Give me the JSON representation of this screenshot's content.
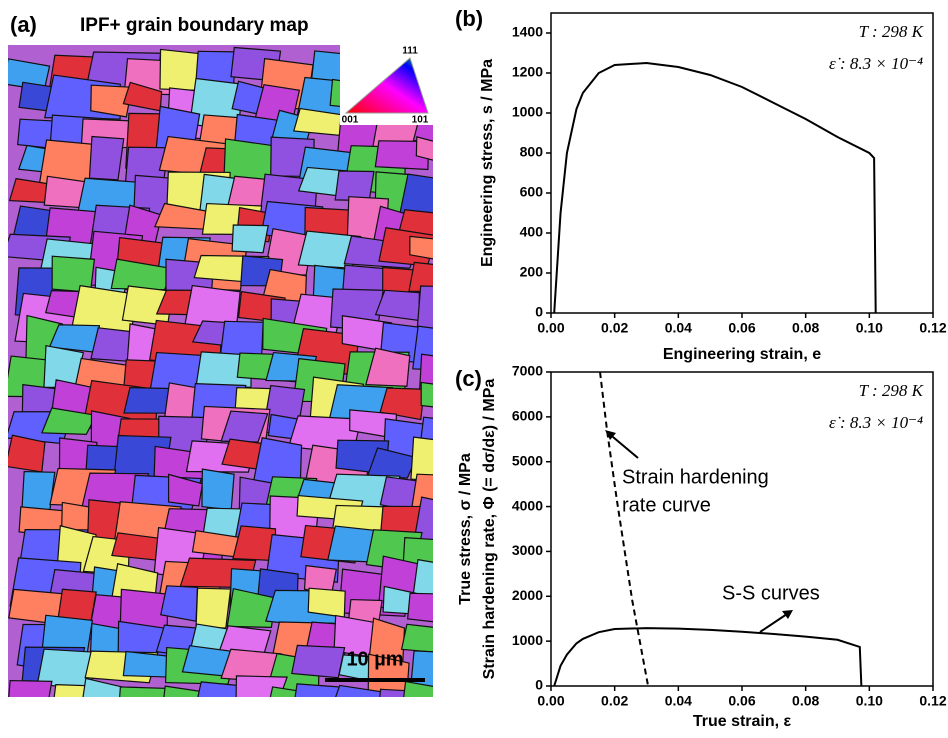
{
  "image_panel": {
    "label": "(a)",
    "title": "IPF+ grain boundary map",
    "legend_labels": [
      "111",
      "001",
      "101"
    ],
    "scale_bar": "10 µm"
  },
  "chart_data": [
    {
      "type": "line",
      "label": "(b)",
      "x_label": "Engineering strain, e",
      "y_labels": [
        "Engineering stress, s / MPa"
      ],
      "annotations": [
        "T : 298 K",
        "ε̇ : 8.3 × 10⁻⁴"
      ],
      "xlim": [
        0,
        0.12
      ],
      "xticks": [
        {
          "value": 0,
          "label": "0.00"
        },
        {
          "value": 0.02,
          "label": "0.02"
        },
        {
          "value": 0.04,
          "label": "0.04"
        },
        {
          "value": 0.06,
          "label": "0.06"
        },
        {
          "value": 0.08,
          "label": "0.08"
        },
        {
          "value": 0.1,
          "label": "0.10"
        },
        {
          "value": 0.12,
          "label": "0.12"
        }
      ],
      "ylim": [
        0,
        1500
      ],
      "yticks": [
        0,
        200,
        400,
        600,
        800,
        1000,
        1200,
        1400
      ],
      "series": [
        {
          "color": "#000000",
          "dash": false,
          "x": [
            0.001,
            0.003,
            0.005,
            0.008,
            0.01,
            0.015,
            0.02,
            0.03,
            0.04,
            0.05,
            0.06,
            0.07,
            0.08,
            0.09,
            0.1,
            0.1015,
            0.102
          ],
          "values": [
            0,
            500,
            800,
            1020,
            1100,
            1200,
            1240,
            1250,
            1230,
            1190,
            1130,
            1050,
            970,
            880,
            800,
            775,
            0
          ]
        }
      ]
    },
    {
      "type": "line",
      "label": "(c)",
      "x_label": "True strain, ε",
      "y_labels": [
        "True stress, σ / MPa",
        "Strain hardening rate, Φ (= dσ/dε) / MPa"
      ],
      "annotations": [
        "T : 298 K",
        "ε̇ : 8.3 × 10⁻⁴",
        "Strain hardening",
        "rate curve",
        "S-S curves"
      ],
      "xlim": [
        0,
        0.12
      ],
      "xticks": [
        {
          "value": 0,
          "label": "0.00"
        },
        {
          "value": 0.02,
          "label": "0.02"
        },
        {
          "value": 0.04,
          "label": "0.04"
        },
        {
          "value": 0.06,
          "label": "0.06"
        },
        {
          "value": 0.08,
          "label": "0.08"
        },
        {
          "value": 0.1,
          "label": "0.10"
        },
        {
          "value": 0.12,
          "label": "0.12"
        }
      ],
      "ylim": [
        0,
        7000
      ],
      "yticks": [
        0,
        1000,
        2000,
        3000,
        4000,
        5000,
        6000,
        7000
      ],
      "series": [
        {
          "color": "#000000",
          "dash": false,
          "x": [
            0.001,
            0.003,
            0.005,
            0.008,
            0.01,
            0.015,
            0.02,
            0.03,
            0.04,
            0.05,
            0.06,
            0.07,
            0.08,
            0.09,
            0.097,
            0.0975
          ],
          "values": [
            0,
            450,
            700,
            950,
            1050,
            1200,
            1270,
            1290,
            1280,
            1250,
            1210,
            1160,
            1100,
            1030,
            870,
            0
          ]
        },
        {
          "color": "#000000",
          "dash": true,
          "x": [
            0.0154,
            0.0176,
            0.0207,
            0.0255,
            0.0305
          ],
          "values": [
            7000,
            5700,
            4140,
            1915,
            0
          ]
        }
      ]
    }
  ]
}
